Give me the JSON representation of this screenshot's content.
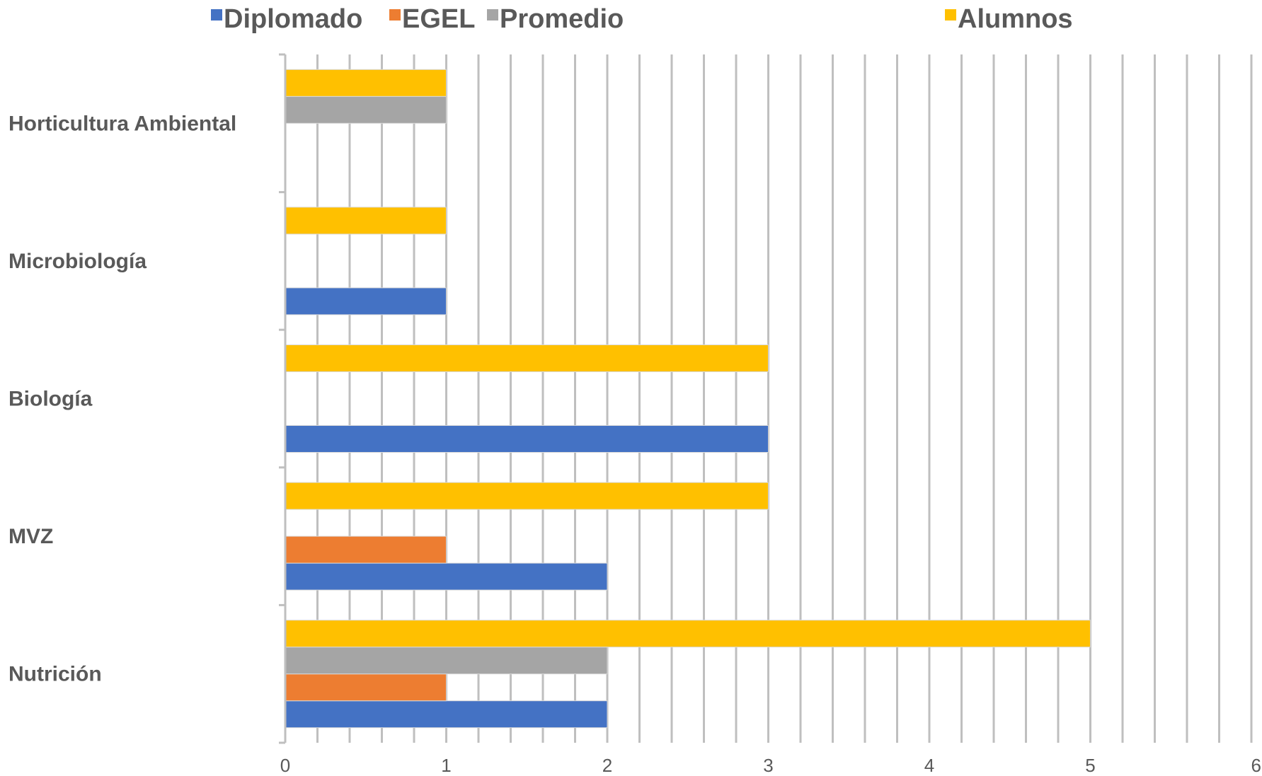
{
  "chart_data": {
    "type": "bar",
    "orientation": "horizontal",
    "title": "",
    "xlabel": "",
    "ylabel": "",
    "categories": [
      "Nutrición",
      "MVZ",
      "Biología",
      "Microbiología",
      "Horticultura Ambiental"
    ],
    "series": [
      {
        "name": "Diplomado",
        "color": "#4472C4",
        "values": [
          2,
          2,
          3,
          1,
          0
        ]
      },
      {
        "name": "EGEL",
        "color": "#ED7D31",
        "values": [
          1,
          1,
          0,
          0,
          0
        ]
      },
      {
        "name": "Promedio",
        "color": "#A5A5A5",
        "values": [
          2,
          0,
          0,
          0,
          1
        ]
      },
      {
        "name": "Alumnos",
        "color": "#FFC000",
        "values": [
          5,
          3,
          3,
          1,
          1
        ]
      }
    ],
    "xlim": [
      0,
      6
    ],
    "x_ticks": [
      "0",
      "1",
      "2",
      "3",
      "4",
      "5",
      "6"
    ],
    "gridlines": "vertical",
    "legend_position": "top"
  }
}
